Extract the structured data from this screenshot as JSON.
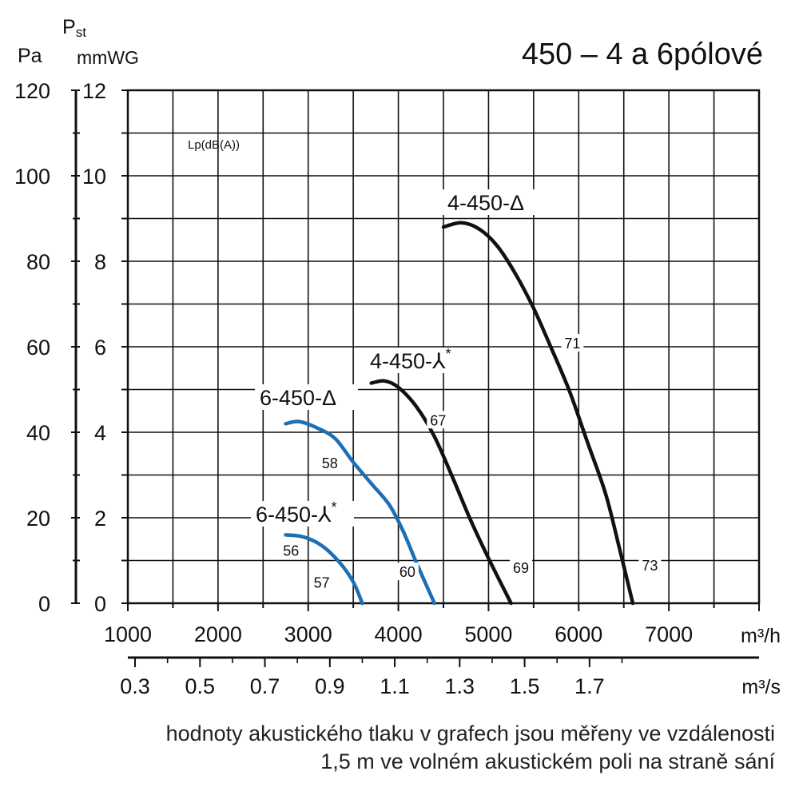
{
  "chart_data": {
    "type": "line",
    "title": "450 – 4 a 6pólové",
    "y_axis_pa": {
      "unit": "Pa",
      "ticks": [
        "0",
        "20",
        "40",
        "60",
        "80",
        "100",
        "120"
      ],
      "range": [
        0,
        120
      ]
    },
    "y_axis_mmwg": {
      "label_main": "P",
      "label_sub": "st",
      "unit": "mmWG",
      "ticks": [
        "0",
        "2",
        "4",
        "6",
        "8",
        "10",
        "12"
      ],
      "range": [
        0,
        12
      ]
    },
    "x_axis_m3h": {
      "unit": "m³/h",
      "ticks": [
        "1000",
        "2000",
        "3000",
        "4000",
        "5000",
        "6000",
        "7000"
      ],
      "range": [
        1000,
        8000
      ]
    },
    "x_axis_m3s": {
      "unit": "m³/s",
      "ticks": [
        "0.3",
        "0.5",
        "0.7",
        "0.9",
        "1.1",
        "1.3",
        "1.5",
        "1.7"
      ],
      "values": [
        0.3,
        0.5,
        0.7,
        0.9,
        1.1,
        1.3,
        1.5,
        1.7
      ]
    },
    "lp_label": "Lp(dB(A))",
    "grid": true,
    "series": [
      {
        "name": "4-450-Δ",
        "color": "#111111",
        "points": [
          [
            4500,
            8.8
          ],
          [
            4700,
            8.9
          ],
          [
            4900,
            8.75
          ],
          [
            5100,
            8.35
          ],
          [
            5300,
            7.7
          ],
          [
            5500,
            6.9
          ],
          [
            5700,
            5.95
          ],
          [
            5900,
            4.95
          ],
          [
            6100,
            3.75
          ],
          [
            6300,
            2.55
          ],
          [
            6450,
            1.3
          ],
          [
            6600,
            0
          ]
        ],
        "noise": [
          {
            "label": "71",
            "x": 5930,
            "y": 6.0
          },
          {
            "label": "73",
            "x": 6790,
            "y": 0.8
          }
        ]
      },
      {
        "name": "4-450-⅄",
        "sup": "*",
        "color": "#111111",
        "points": [
          [
            3700,
            5.15
          ],
          [
            3850,
            5.2
          ],
          [
            4000,
            5.05
          ],
          [
            4200,
            4.6
          ],
          [
            4400,
            3.9
          ],
          [
            4600,
            2.95
          ],
          [
            4800,
            1.95
          ],
          [
            5000,
            1.05
          ],
          [
            5250,
            0
          ]
        ],
        "noise": [
          {
            "label": "67",
            "x": 4440,
            "y": 4.2
          },
          {
            "label": "69",
            "x": 5360,
            "y": 0.75
          }
        ]
      },
      {
        "name": "6-450-Δ",
        "color": "#1c6fb5",
        "points": [
          [
            2750,
            4.2
          ],
          [
            2900,
            4.25
          ],
          [
            3100,
            4.1
          ],
          [
            3300,
            3.85
          ],
          [
            3500,
            3.3
          ],
          [
            3700,
            2.8
          ],
          [
            3900,
            2.3
          ],
          [
            4050,
            1.7
          ],
          [
            4200,
            0.95
          ],
          [
            4400,
            0
          ]
        ],
        "noise": [
          {
            "label": "58",
            "x": 3240,
            "y": 3.2
          },
          {
            "label": "60",
            "x": 4100,
            "y": 0.65
          }
        ]
      },
      {
        "name": "6-450-⅄",
        "sup": "*",
        "color": "#1c6fb5",
        "points": [
          [
            2750,
            1.6
          ],
          [
            2950,
            1.55
          ],
          [
            3150,
            1.35
          ],
          [
            3350,
            0.95
          ],
          [
            3500,
            0.5
          ],
          [
            3600,
            0
          ]
        ],
        "noise": [
          {
            "label": "56",
            "x": 2810,
            "y": 1.15
          },
          {
            "label": "57",
            "x": 3150,
            "y": 0.4
          }
        ]
      }
    ]
  },
  "footnote": {
    "line1": "hodnoty akustického tlaku v grafech jsou měřeny ve vzdálenosti",
    "line2": "1,5 m ve volném akustickém poli na straně sání"
  }
}
